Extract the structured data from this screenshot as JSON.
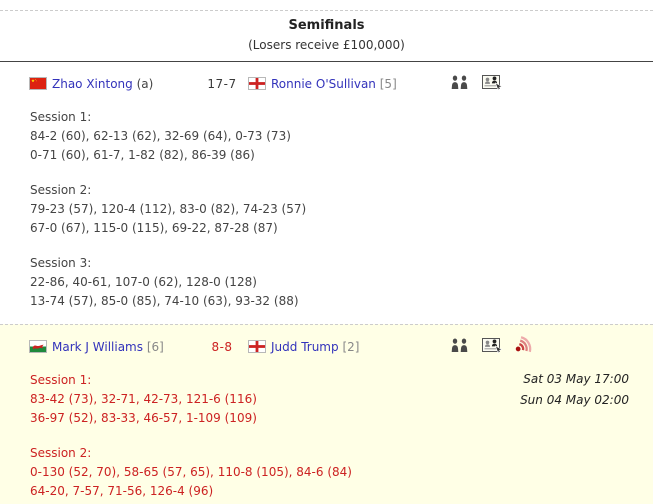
{
  "page": {
    "round_title": "Semifinals",
    "round_subtitle": "(Losers receive £100,000)"
  },
  "colors": {
    "link_blue": "#3333bb",
    "live_red": "#cc2222",
    "live_background": "#ffffe6",
    "body_text": "#444444"
  },
  "matches": [
    {
      "status": "finished",
      "player1": {
        "flag": "china",
        "name": "Zhao Xintong",
        "suffix": "(a)"
      },
      "score": "17-7",
      "player2": {
        "flag": "england",
        "name": "Ronnie O'Sullivan",
        "suffix": "[5]"
      },
      "icons": [
        "head-to-head",
        "match-details"
      ],
      "schedule": [],
      "sessions": [
        {
          "label": "Session 1:",
          "lines": [
            "84-2 (60), 62-13 (62), 32-69 (64), 0-73 (73)",
            "0-71 (60), 61-7, 1-82 (82), 86-39 (86)"
          ]
        },
        {
          "label": "Session 2:",
          "lines": [
            "79-23 (57), 120-4 (112), 83-0 (82), 74-23 (57)",
            "67-0 (67), 115-0 (115), 69-22, 87-28 (87)"
          ]
        },
        {
          "label": "Session 3:",
          "lines": [
            "22-86, 40-61, 107-0 (62), 128-0 (128)",
            "13-74 (57), 85-0 (85), 74-10 (63), 93-32 (88)"
          ]
        }
      ]
    },
    {
      "status": "live",
      "player1": {
        "flag": "wales",
        "name": "Mark J Williams",
        "suffix": "[6]"
      },
      "score": "8-8",
      "player2": {
        "flag": "england",
        "name": "Judd Trump",
        "suffix": "[2]"
      },
      "icons": [
        "head-to-head",
        "match-details",
        "live-stream"
      ],
      "schedule": [
        "Sat 03 May 17:00",
        "Sun 04 May 02:00"
      ],
      "sessions": [
        {
          "label": "Session 1:",
          "lines": [
            "83-42 (73), 32-71, 42-73, 121-6 (116)",
            "36-97 (52), 83-33, 46-57, 1-109 (109)"
          ]
        },
        {
          "label": "Session 2:",
          "lines": [
            "0-130 (52, 70), 58-65 (57, 65), 110-8 (105), 84-6 (84)",
            "64-20, 7-57, 71-56, 126-4 (96)"
          ]
        }
      ]
    }
  ]
}
